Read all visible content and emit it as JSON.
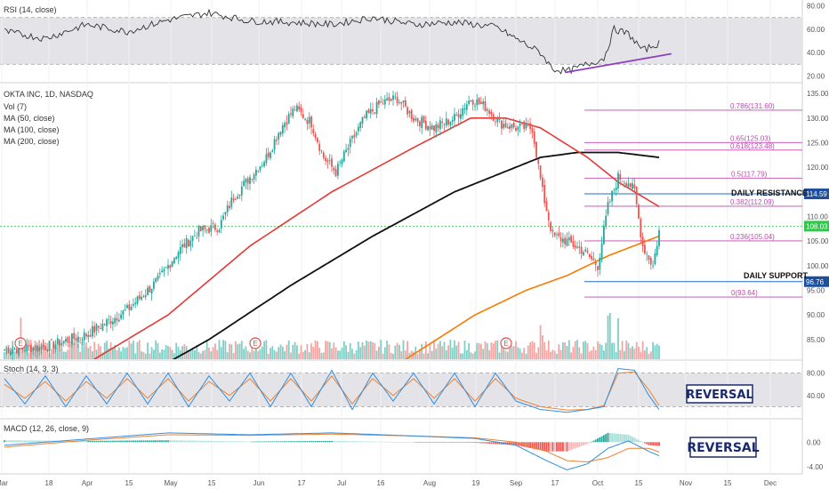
{
  "chart_data": {
    "type": "candlestick",
    "title": "OKTA INC, 1D, NASDAQ",
    "indicators": [
      "Vol (7)",
      "MA (50, close)",
      "MA (100, close)",
      "MA (200, close)"
    ],
    "x_ticks": [
      "Mar",
      "18",
      "Apr",
      "15",
      "May",
      "15",
      "Jun",
      "17",
      "Jul",
      "16",
      "Aug",
      "19",
      "Sep",
      "17",
      "Oct",
      "15",
      "Nov",
      "15",
      "Dec"
    ],
    "price_axis": [
      "135.00",
      "130.00",
      "125.00",
      "120.00",
      "115.00",
      "110.00",
      "105.00",
      "100.00",
      "95.00",
      "90.00",
      "85.00"
    ],
    "ylim": [
      81,
      137
    ],
    "current_price": "108.03",
    "resistance": {
      "value": "114.59",
      "label": "DAILY RESISTANCE"
    },
    "support": {
      "value": "96.76",
      "label": "DAILY SUPPORT"
    },
    "fib_levels": [
      {
        "label": "0.786(131.60)",
        "value": 131.6
      },
      {
        "label": "0.65(125.03)",
        "value": 125.03
      },
      {
        "label": "0.618(123.48)",
        "value": 123.48
      },
      {
        "label": "0.5(117.79)",
        "value": 117.79
      },
      {
        "label": "0.382(112.09)",
        "value": 112.09
      },
      {
        "label": "0.236(105.04)",
        "value": 105.04
      },
      {
        "label": "0(93.64)",
        "value": 93.64
      }
    ],
    "close_waypoints": [
      [
        0,
        83
      ],
      [
        20,
        83.5
      ],
      [
        40,
        86
      ],
      [
        60,
        91
      ],
      [
        75,
        97
      ],
      [
        85,
        103
      ],
      [
        95,
        107
      ],
      [
        105,
        108
      ],
      [
        112,
        114
      ],
      [
        120,
        118
      ],
      [
        128,
        122
      ],
      [
        135,
        128
      ],
      [
        142,
        132
      ],
      [
        150,
        129
      ],
      [
        156,
        122
      ],
      [
        162,
        119
      ],
      [
        168,
        124
      ],
      [
        176,
        130
      ],
      [
        184,
        133
      ],
      [
        192,
        134
      ],
      [
        200,
        130
      ],
      [
        210,
        128
      ],
      [
        220,
        130
      ],
      [
        228,
        134
      ],
      [
        236,
        132
      ],
      [
        242,
        129
      ],
      [
        250,
        128
      ],
      [
        258,
        128
      ],
      [
        263,
        115
      ],
      [
        268,
        106
      ],
      [
        275,
        105
      ],
      [
        283,
        103
      ],
      [
        290,
        100
      ],
      [
        295,
        112
      ],
      [
        300,
        118
      ],
      [
        305,
        117
      ],
      [
        308,
        115
      ],
      [
        312,
        104
      ],
      [
        317,
        100
      ],
      [
        320,
        107
      ]
    ],
    "ma50_waypoints": [
      [
        0,
        75
      ],
      [
        40,
        80
      ],
      [
        80,
        90
      ],
      [
        120,
        104
      ],
      [
        160,
        115
      ],
      [
        200,
        124
      ],
      [
        228,
        130
      ],
      [
        245,
        130
      ],
      [
        262,
        128
      ],
      [
        285,
        122
      ],
      [
        300,
        117
      ],
      [
        320,
        112
      ]
    ],
    "ma100_waypoints": [
      [
        70,
        78
      ],
      [
        100,
        85
      ],
      [
        140,
        96
      ],
      [
        180,
        106
      ],
      [
        220,
        115
      ],
      [
        250,
        120
      ],
      [
        262,
        122
      ],
      [
        280,
        123
      ],
      [
        300,
        123
      ],
      [
        320,
        122
      ]
    ],
    "ma200_waypoints": [
      [
        140,
        68
      ],
      [
        170,
        74
      ],
      [
        200,
        82
      ],
      [
        230,
        90
      ],
      [
        255,
        95
      ],
      [
        275,
        98
      ],
      [
        295,
        102
      ],
      [
        320,
        106
      ]
    ],
    "rsi": {
      "label": "RSI (14, close)",
      "axis": [
        "80.00",
        "60.00",
        "40.00",
        "20.00"
      ],
      "ylim": [
        15,
        85
      ],
      "band": [
        30,
        70
      ],
      "waypoints": [
        [
          0,
          58
        ],
        [
          20,
          52
        ],
        [
          40,
          64
        ],
        [
          60,
          58
        ],
        [
          80,
          68
        ],
        [
          100,
          74
        ],
        [
          120,
          67
        ],
        [
          140,
          66
        ],
        [
          160,
          64
        ],
        [
          180,
          70
        ],
        [
          200,
          64
        ],
        [
          220,
          66
        ],
        [
          240,
          62
        ],
        [
          262,
          40
        ],
        [
          268,
          26
        ],
        [
          275,
          24
        ],
        [
          285,
          30
        ],
        [
          293,
          35
        ],
        [
          298,
          60
        ],
        [
          305,
          56
        ],
        [
          312,
          42
        ],
        [
          320,
          48
        ]
      ]
    },
    "stoch": {
      "label": "Stoch (14, 3, 3)",
      "axis": [
        "80.00",
        "40.00"
      ],
      "ylim": [
        0,
        100
      ],
      "band": [
        20,
        80
      ],
      "annotation": "REVERSAL",
      "k_waypoints": [
        [
          0,
          70
        ],
        [
          10,
          25
        ],
        [
          20,
          75
        ],
        [
          30,
          20
        ],
        [
          40,
          75
        ],
        [
          50,
          25
        ],
        [
          60,
          80
        ],
        [
          70,
          25
        ],
        [
          80,
          80
        ],
        [
          90,
          20
        ],
        [
          100,
          75
        ],
        [
          110,
          30
        ],
        [
          120,
          80
        ],
        [
          130,
          20
        ],
        [
          140,
          80
        ],
        [
          150,
          20
        ],
        [
          160,
          85
        ],
        [
          170,
          15
        ],
        [
          180,
          80
        ],
        [
          190,
          30
        ],
        [
          200,
          80
        ],
        [
          210,
          25
        ],
        [
          220,
          80
        ],
        [
          230,
          20
        ],
        [
          240,
          80
        ],
        [
          250,
          30
        ],
        [
          262,
          15
        ],
        [
          275,
          10
        ],
        [
          285,
          15
        ],
        [
          293,
          20
        ],
        [
          300,
          88
        ],
        [
          308,
          85
        ],
        [
          315,
          40
        ],
        [
          320,
          15
        ]
      ],
      "d_waypoints": [
        [
          0,
          60
        ],
        [
          10,
          35
        ],
        [
          20,
          65
        ],
        [
          30,
          30
        ],
        [
          40,
          65
        ],
        [
          50,
          35
        ],
        [
          60,
          70
        ],
        [
          70,
          35
        ],
        [
          80,
          70
        ],
        [
          90,
          30
        ],
        [
          100,
          65
        ],
        [
          110,
          40
        ],
        [
          120,
          70
        ],
        [
          130,
          30
        ],
        [
          140,
          70
        ],
        [
          150,
          30
        ],
        [
          160,
          75
        ],
        [
          170,
          25
        ],
        [
          180,
          70
        ],
        [
          190,
          40
        ],
        [
          200,
          70
        ],
        [
          210,
          35
        ],
        [
          220,
          70
        ],
        [
          230,
          30
        ],
        [
          240,
          70
        ],
        [
          250,
          35
        ],
        [
          262,
          20
        ],
        [
          275,
          14
        ],
        [
          285,
          15
        ],
        [
          293,
          22
        ],
        [
          300,
          80
        ],
        [
          308,
          82
        ],
        [
          315,
          50
        ],
        [
          320,
          22
        ]
      ]
    },
    "macd": {
      "label": "MACD (12, 26, close, 9)",
      "axis": [
        "0.00",
        "-4.00"
      ],
      "ylim": [
        -5,
        3.5
      ],
      "annotation": "REVERSAL",
      "macd_waypoints": [
        [
          0,
          -0.5
        ],
        [
          40,
          0.5
        ],
        [
          80,
          1.5
        ],
        [
          120,
          1.2
        ],
        [
          160,
          1.5
        ],
        [
          200,
          1.0
        ],
        [
          230,
          0.6
        ],
        [
          250,
          -0.5
        ],
        [
          265,
          -3.0
        ],
        [
          275,
          -4.5
        ],
        [
          285,
          -3.5
        ],
        [
          295,
          -1.0
        ],
        [
          305,
          0.2
        ],
        [
          315,
          -1.5
        ],
        [
          320,
          -2.2
        ]
      ],
      "signal_waypoints": [
        [
          0,
          -0.8
        ],
        [
          40,
          0.3
        ],
        [
          80,
          1.2
        ],
        [
          120,
          1.1
        ],
        [
          160,
          1.3
        ],
        [
          200,
          1.0
        ],
        [
          230,
          0.7
        ],
        [
          250,
          0
        ],
        [
          265,
          -1.5
        ],
        [
          275,
          -3.0
        ],
        [
          285,
          -3.2
        ],
        [
          295,
          -2.5
        ],
        [
          305,
          -1.0
        ],
        [
          315,
          -1.0
        ],
        [
          320,
          -1.6
        ]
      ]
    }
  },
  "colors": {
    "up": "#26a69a",
    "down": "#ef5350",
    "ma50": "#e53935",
    "ma100": "#111111",
    "ma200": "#f57c00",
    "fib": "#c048b0",
    "sr_line": "#1e6fcf",
    "price_line": "#2ec94a",
    "rsi_line": "#333333",
    "trend": "#8e3fc0",
    "stoch_k": "#2f8fe0",
    "stoch_d": "#f08030",
    "band": "#e4e4e8"
  }
}
